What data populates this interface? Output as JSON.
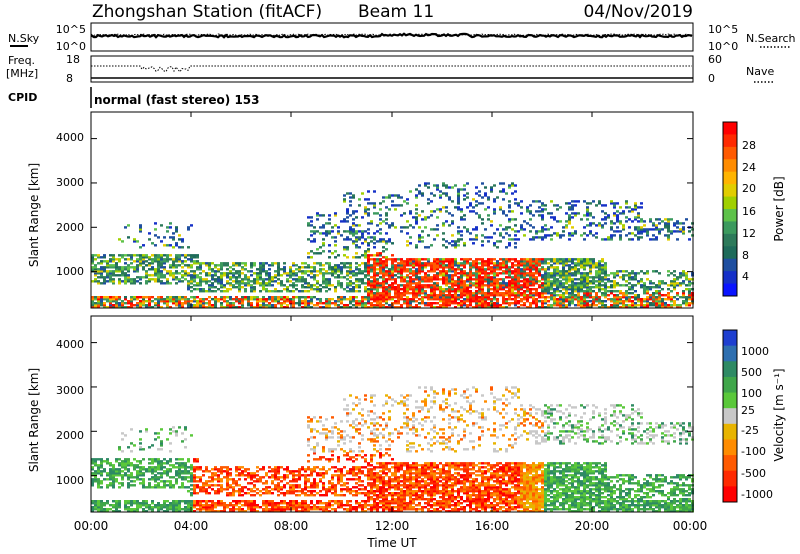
{
  "header": {
    "title": "Zhongshan Station (fitACF)",
    "beam": "Beam 11",
    "date": "04/Nov/2019"
  },
  "sky_panel": {
    "left_label": "N.Sky",
    "left_ticks": [
      "10^5",
      "10^0"
    ],
    "right_label": "N.Search",
    "right_ticks": [
      "10^5",
      "10^0"
    ]
  },
  "freq_panel": {
    "left_label_line1": "Freq.",
    "left_label_line2": "[MHz]",
    "left_ticks": [
      "18",
      "8"
    ],
    "right_label": "Nave",
    "right_ticks": [
      "60",
      "0"
    ]
  },
  "cpid": {
    "label": "CPID",
    "mode_text": "normal (fast stereo) 153"
  },
  "chart_data": [
    {
      "type": "heatmap",
      "name": "power",
      "ylabel": "Slant Range [km]",
      "yticks": [
        "1000",
        "2000",
        "3000",
        "4000"
      ],
      "ylim": [
        180,
        4600
      ],
      "xlim": [
        0,
        24
      ],
      "colorbar": {
        "label": "Power [dB]",
        "ticks": [
          "28",
          "24",
          "20",
          "16",
          "12",
          "8",
          "4"
        ],
        "colors": [
          "#ff0000",
          "#ff2a00",
          "#ff5a00",
          "#ff8c00",
          "#ffb400",
          "#e1cd00",
          "#a0d000",
          "#5ec24a",
          "#3c9a5e",
          "#2d7a5a",
          "#1e6b5a",
          "#1f4fa0",
          "#1530c8",
          "#0a14ff"
        ]
      }
    },
    {
      "type": "heatmap",
      "name": "velocity",
      "ylabel": "Slant Range [km]",
      "yticks": [
        "1000",
        "2000",
        "3000",
        "4000"
      ],
      "ylim": [
        180,
        4600
      ],
      "xlim": [
        0,
        24
      ],
      "xticks": [
        "00:00",
        "04:00",
        "08:00",
        "12:00",
        "16:00",
        "20:00",
        "00:00"
      ],
      "xlabel": "Time UT",
      "colorbar": {
        "label": "Velocity [m s⁻¹]",
        "ticks": [
          "1000",
          "500",
          "100",
          "25",
          "-25",
          "-100",
          "-500",
          "-1000"
        ],
        "colors": [
          "#1e3fd0",
          "#2e6fb0",
          "#2e8a64",
          "#3fa64a",
          "#5ac83a",
          "#c8c8c8",
          "#e8b400",
          "#ff8c00",
          "#ff5a00",
          "#ff2a00",
          "#ff0000"
        ]
      }
    }
  ]
}
